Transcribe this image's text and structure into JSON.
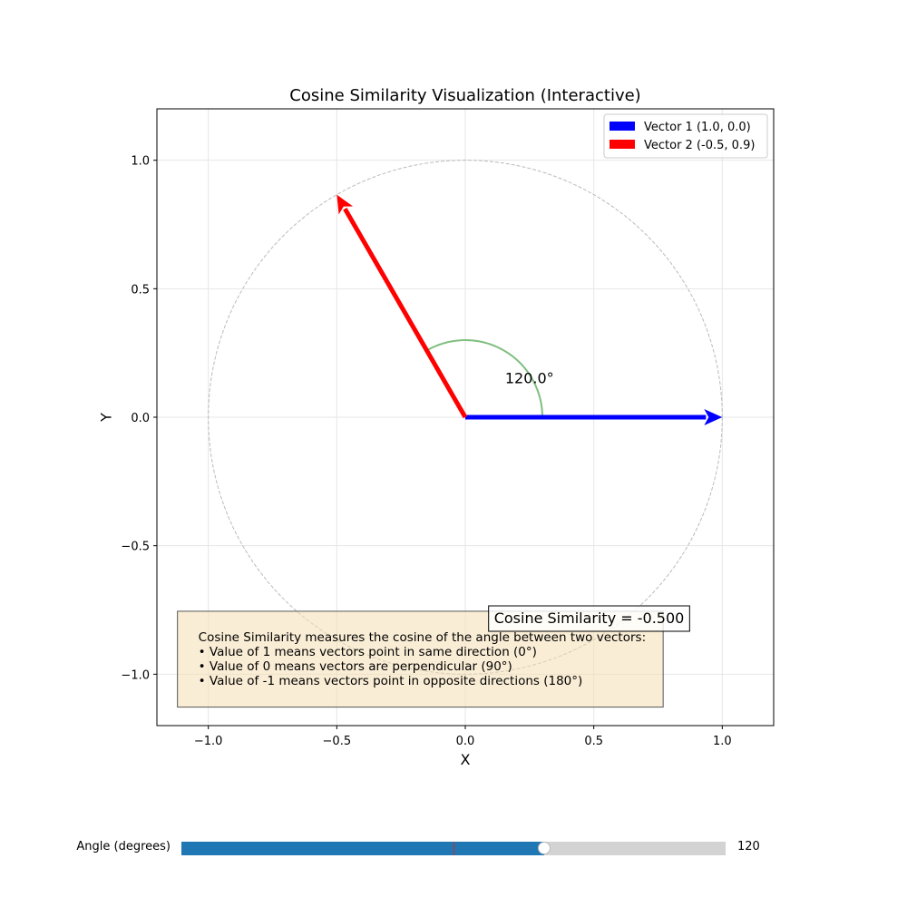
{
  "chart_data": {
    "type": "vector-plot",
    "title": "Cosine Similarity Visualization (Interactive)",
    "xlabel": "X",
    "ylabel": "Y",
    "xlim": [
      -1.2,
      1.2
    ],
    "ylim": [
      -1.2,
      1.2
    ],
    "xticks": [
      -1.0,
      -0.5,
      0.0,
      0.5,
      1.0
    ],
    "yticks": [
      -1.0,
      -0.5,
      0.0,
      0.5,
      1.0
    ],
    "xtick_labels": [
      "−1.0",
      "−0.5",
      "0.0",
      "0.5",
      "1.0"
    ],
    "ytick_labels": [
      "−1.0",
      "−0.5",
      "0.0",
      "0.5",
      "1.0"
    ],
    "grid": true,
    "unit_circle": {
      "radius": 1.0,
      "style": "dashed",
      "color": "#bbbbbb"
    },
    "vectors": [
      {
        "name": "Vector 1 (1.0, 0.0)",
        "x": 1.0,
        "y": 0.0,
        "color": "#0000ff"
      },
      {
        "name": "Vector 2 (-0.5, 0.9)",
        "x": -0.5,
        "y": 0.866,
        "color": "#ff0000"
      }
    ],
    "angle_arc": {
      "radius": 0.3,
      "start_deg": 0,
      "end_deg": 120,
      "color": "#7fbf7f"
    },
    "angle_label": "120.0°",
    "angle_label_pos": [
      0.25,
      0.15
    ],
    "legend_position": "top-right",
    "similarity_label": "Cosine Similarity = -0.500",
    "similarity_label_pos": [
      0.88,
      -0.78
    ],
    "info_box": {
      "lines": [
        "Cosine Similarity measures the cosine of the angle between two vectors:",
        "• Value of 1 means vectors point in same direction (0°)",
        "• Value of 0 means vectors are perpendicular (90°)",
        "• Value of -1 means vectors point in opposite directions (180°)"
      ],
      "background": "#f5deb3"
    }
  },
  "slider": {
    "label": "Angle (degrees)",
    "min": 0,
    "max": 180,
    "value": 120,
    "initial": 90,
    "value_text": "120",
    "fill_color": "#1f77b4"
  }
}
